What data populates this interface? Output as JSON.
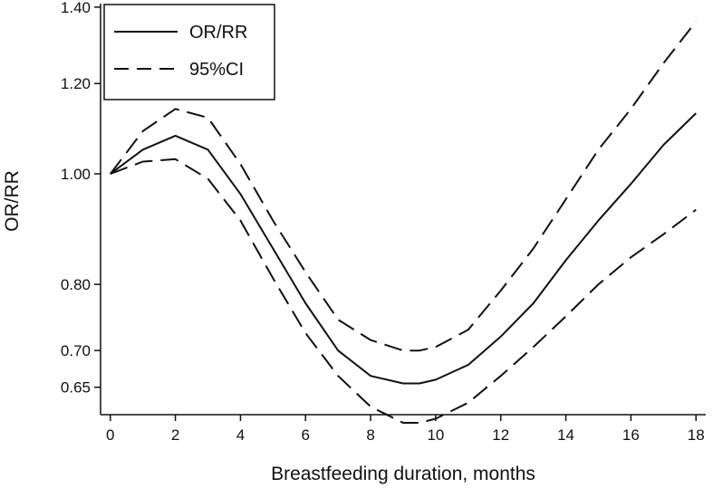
{
  "chart_data": {
    "type": "line",
    "xlabel": "Breastfeeding duration, months",
    "ylabel": "OR/RR",
    "x_ticks": [
      0,
      2,
      4,
      6,
      8,
      10,
      12,
      14,
      16,
      18
    ],
    "y_ticks": [
      0.65,
      0.7,
      0.8,
      1.0,
      1.2,
      1.4
    ],
    "y_tick_labels": [
      "0.65",
      "0.70",
      "0.80",
      "1.00",
      "1.20",
      "1.40"
    ],
    "xlim": [
      -0.3,
      18.3
    ],
    "ylim": [
      0.615,
      1.41
    ],
    "y_scale": "log",
    "grid": false,
    "legend_position": "top-left",
    "series": [
      {
        "name": "OR/RR",
        "style": "solid",
        "x": [
          0,
          1,
          2,
          3,
          4,
          5,
          6,
          7,
          8,
          9,
          9.5,
          10,
          11,
          12,
          13,
          14,
          15,
          16,
          17,
          18
        ],
        "y": [
          1.0,
          1.05,
          1.08,
          1.05,
          0.96,
          0.86,
          0.77,
          0.7,
          0.665,
          0.655,
          0.655,
          0.66,
          0.68,
          0.72,
          0.77,
          0.84,
          0.91,
          0.98,
          1.06,
          1.13
        ]
      },
      {
        "name": "95%CI",
        "style": "dashed",
        "x": [
          0,
          1,
          2,
          3,
          4,
          5,
          6,
          7,
          8,
          9,
          9.5,
          10,
          11,
          12,
          13,
          14,
          15,
          16,
          17,
          18
        ],
        "y": [
          1.0,
          1.09,
          1.14,
          1.12,
          1.02,
          0.91,
          0.82,
          0.745,
          0.715,
          0.7,
          0.7,
          0.705,
          0.73,
          0.79,
          0.86,
          0.95,
          1.05,
          1.14,
          1.25,
          1.36
        ]
      },
      {
        "name": "95%CI",
        "style": "dashed",
        "x": [
          0,
          1,
          2,
          3,
          4,
          5,
          6,
          7,
          8,
          9,
          9.5,
          10,
          11,
          12,
          13,
          14,
          15,
          16,
          17,
          18
        ],
        "y": [
          1.0,
          1.025,
          1.03,
          0.99,
          0.91,
          0.81,
          0.725,
          0.665,
          0.625,
          0.605,
          0.605,
          0.61,
          0.63,
          0.665,
          0.705,
          0.75,
          0.8,
          0.845,
          0.885,
          0.93
        ]
      }
    ]
  }
}
